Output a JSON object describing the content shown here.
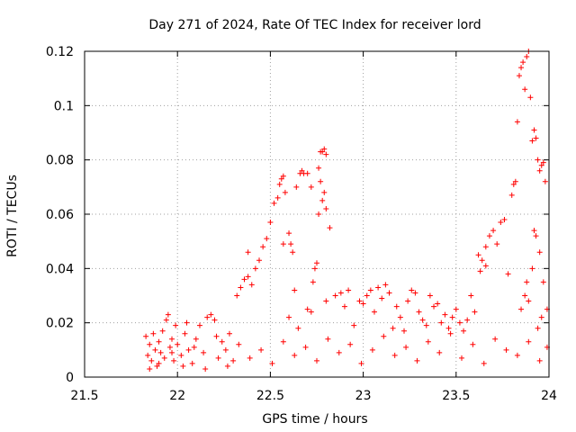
{
  "chart_data": {
    "type": "scatter",
    "title": "Day 271 of 2024, Rate Of TEC Index for receiver lord",
    "xlabel": "GPS time / hours",
    "ylabel": "ROTI / TECUs",
    "xlim": [
      21.5,
      24
    ],
    "ylim": [
      0,
      0.12
    ],
    "xticks": [
      21.5,
      22,
      22.5,
      23,
      23.5,
      24
    ],
    "xtick_labels": [
      "21.5",
      "22",
      "22.5",
      "23",
      "23.5",
      "24"
    ],
    "yticks": [
      0,
      0.02,
      0.04,
      0.06,
      0.08,
      0.1,
      0.12
    ],
    "ytick_labels": [
      "0",
      "0.02",
      "0.04",
      "0.06",
      "0.08",
      "0.1",
      "0.12"
    ],
    "grid": true,
    "marker": "+",
    "marker_color": "#ff0000",
    "series": [
      {
        "name": "ROTI",
        "points": [
          [
            21.83,
            0.015
          ],
          [
            21.84,
            0.008
          ],
          [
            21.85,
            0.012
          ],
          [
            21.86,
            0.006
          ],
          [
            21.87,
            0.016
          ],
          [
            21.88,
            0.01
          ],
          [
            21.89,
            0.004
          ],
          [
            21.9,
            0.013
          ],
          [
            21.91,
            0.009
          ],
          [
            21.92,
            0.017
          ],
          [
            21.93,
            0.007
          ],
          [
            21.94,
            0.021
          ],
          [
            21.95,
            0.023
          ],
          [
            21.96,
            0.011
          ],
          [
            21.97,
            0.014
          ],
          [
            21.98,
            0.006
          ],
          [
            21.99,
            0.019
          ],
          [
            22.0,
            0.012
          ],
          [
            22.02,
            0.008
          ],
          [
            22.04,
            0.016
          ],
          [
            22.05,
            0.02
          ],
          [
            22.06,
            0.01
          ],
          [
            22.08,
            0.005
          ],
          [
            22.1,
            0.014
          ],
          [
            22.12,
            0.019
          ],
          [
            22.14,
            0.009
          ],
          [
            22.16,
            0.022
          ],
          [
            22.18,
            0.023
          ],
          [
            22.2,
            0.021
          ],
          [
            22.22,
            0.007
          ],
          [
            22.24,
            0.013
          ],
          [
            22.26,
            0.01
          ],
          [
            22.28,
            0.016
          ],
          [
            22.3,
            0.006
          ],
          [
            21.85,
            0.003
          ],
          [
            21.9,
            0.005
          ],
          [
            21.97,
            0.009
          ],
          [
            22.03,
            0.004
          ],
          [
            22.09,
            0.011
          ],
          [
            22.15,
            0.003
          ],
          [
            22.21,
            0.015
          ],
          [
            22.27,
            0.004
          ],
          [
            22.33,
            0.012
          ],
          [
            22.39,
            0.007
          ],
          [
            22.45,
            0.01
          ],
          [
            22.51,
            0.005
          ],
          [
            22.57,
            0.013
          ],
          [
            22.63,
            0.008
          ],
          [
            22.69,
            0.011
          ],
          [
            22.75,
            0.006
          ],
          [
            22.81,
            0.014
          ],
          [
            22.87,
            0.009
          ],
          [
            22.93,
            0.012
          ],
          [
            22.99,
            0.005
          ],
          [
            23.05,
            0.01
          ],
          [
            23.11,
            0.015
          ],
          [
            23.17,
            0.008
          ],
          [
            23.23,
            0.011
          ],
          [
            23.29,
            0.006
          ],
          [
            23.35,
            0.013
          ],
          [
            23.41,
            0.009
          ],
          [
            23.47,
            0.016
          ],
          [
            23.53,
            0.007
          ],
          [
            23.59,
            0.012
          ],
          [
            23.65,
            0.005
          ],
          [
            23.71,
            0.014
          ],
          [
            23.77,
            0.01
          ],
          [
            23.83,
            0.008
          ],
          [
            23.89,
            0.013
          ],
          [
            23.95,
            0.006
          ],
          [
            23.99,
            0.011
          ],
          [
            22.32,
            0.03
          ],
          [
            22.34,
            0.033
          ],
          [
            22.36,
            0.036
          ],
          [
            22.38,
            0.037
          ],
          [
            22.4,
            0.034
          ],
          [
            22.42,
            0.04
          ],
          [
            22.44,
            0.043
          ],
          [
            22.46,
            0.048
          ],
          [
            22.38,
            0.046
          ],
          [
            22.48,
            0.051
          ],
          [
            22.5,
            0.057
          ],
          [
            22.52,
            0.064
          ],
          [
            22.54,
            0.066
          ],
          [
            22.55,
            0.071
          ],
          [
            22.56,
            0.073
          ],
          [
            22.57,
            0.074
          ],
          [
            22.58,
            0.068
          ],
          [
            22.6,
            0.053
          ],
          [
            22.61,
            0.049
          ],
          [
            22.62,
            0.046
          ],
          [
            22.64,
            0.07
          ],
          [
            22.66,
            0.075
          ],
          [
            22.67,
            0.076
          ],
          [
            22.68,
            0.075
          ],
          [
            22.7,
            0.075
          ],
          [
            22.72,
            0.07
          ],
          [
            22.73,
            0.035
          ],
          [
            22.74,
            0.04
          ],
          [
            22.75,
            0.042
          ],
          [
            22.76,
            0.077
          ],
          [
            22.77,
            0.083
          ],
          [
            22.78,
            0.083
          ],
          [
            22.79,
            0.084
          ],
          [
            22.8,
            0.082
          ],
          [
            22.76,
            0.06
          ],
          [
            22.78,
            0.065
          ],
          [
            22.8,
            0.062
          ],
          [
            22.82,
            0.055
          ],
          [
            22.77,
            0.072
          ],
          [
            22.79,
            0.068
          ],
          [
            22.63,
            0.032
          ],
          [
            22.57,
            0.049
          ],
          [
            22.6,
            0.022
          ],
          [
            22.65,
            0.018
          ],
          [
            22.7,
            0.025
          ],
          [
            22.72,
            0.024
          ],
          [
            22.8,
            0.028
          ],
          [
            22.85,
            0.03
          ],
          [
            22.88,
            0.031
          ],
          [
            22.9,
            0.026
          ],
          [
            22.92,
            0.032
          ],
          [
            22.95,
            0.019
          ],
          [
            22.98,
            0.028
          ],
          [
            23.0,
            0.027
          ],
          [
            23.02,
            0.03
          ],
          [
            23.04,
            0.032
          ],
          [
            23.06,
            0.024
          ],
          [
            23.08,
            0.033
          ],
          [
            23.1,
            0.029
          ],
          [
            23.12,
            0.034
          ],
          [
            23.14,
            0.031
          ],
          [
            23.16,
            0.018
          ],
          [
            23.18,
            0.026
          ],
          [
            23.2,
            0.022
          ],
          [
            23.22,
            0.017
          ],
          [
            23.24,
            0.028
          ],
          [
            23.26,
            0.032
          ],
          [
            23.28,
            0.031
          ],
          [
            23.3,
            0.024
          ],
          [
            23.32,
            0.021
          ],
          [
            23.34,
            0.019
          ],
          [
            23.36,
            0.03
          ],
          [
            23.38,
            0.026
          ],
          [
            23.4,
            0.027
          ],
          [
            23.42,
            0.02
          ],
          [
            23.44,
            0.023
          ],
          [
            23.46,
            0.018
          ],
          [
            23.48,
            0.022
          ],
          [
            23.5,
            0.025
          ],
          [
            23.52,
            0.02
          ],
          [
            23.54,
            0.017
          ],
          [
            23.56,
            0.021
          ],
          [
            23.58,
            0.03
          ],
          [
            23.6,
            0.024
          ],
          [
            23.62,
            0.045
          ],
          [
            23.64,
            0.043
          ],
          [
            23.66,
            0.048
          ],
          [
            23.68,
            0.052
          ],
          [
            23.7,
            0.054
          ],
          [
            23.72,
            0.049
          ],
          [
            23.74,
            0.057
          ],
          [
            23.76,
            0.058
          ],
          [
            23.78,
            0.038
          ],
          [
            23.8,
            0.067
          ],
          [
            23.81,
            0.071
          ],
          [
            23.82,
            0.072
          ],
          [
            23.83,
            0.094
          ],
          [
            23.84,
            0.111
          ],
          [
            23.85,
            0.114
          ],
          [
            23.86,
            0.116
          ],
          [
            23.87,
            0.106
          ],
          [
            23.88,
            0.118
          ],
          [
            23.89,
            0.12
          ],
          [
            23.9,
            0.103
          ],
          [
            23.91,
            0.087
          ],
          [
            23.92,
            0.091
          ],
          [
            23.93,
            0.088
          ],
          [
            23.94,
            0.08
          ],
          [
            23.95,
            0.076
          ],
          [
            23.96,
            0.078
          ],
          [
            23.97,
            0.079
          ],
          [
            23.98,
            0.072
          ],
          [
            23.63,
            0.039
          ],
          [
            23.66,
            0.041
          ],
          [
            23.85,
            0.025
          ],
          [
            23.87,
            0.03
          ],
          [
            23.89,
            0.028
          ],
          [
            23.91,
            0.04
          ],
          [
            23.93,
            0.052
          ],
          [
            23.95,
            0.046
          ],
          [
            23.97,
            0.035
          ],
          [
            23.99,
            0.025
          ],
          [
            23.92,
            0.054
          ],
          [
            23.88,
            0.035
          ],
          [
            23.94,
            0.018
          ],
          [
            23.96,
            0.022
          ]
        ]
      }
    ]
  }
}
